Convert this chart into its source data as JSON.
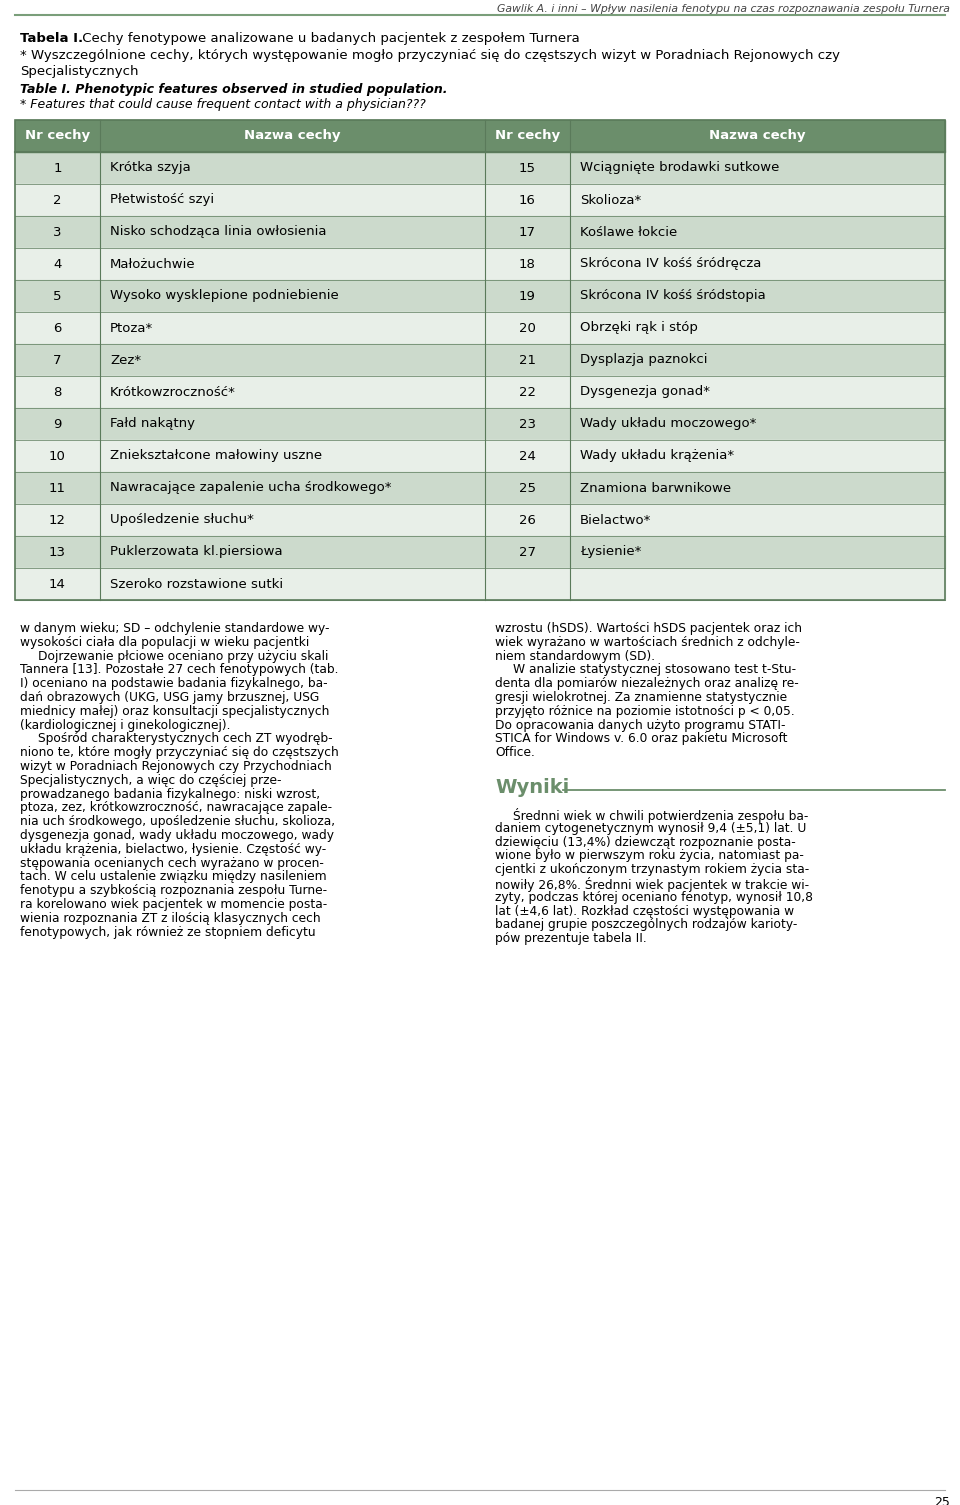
{
  "header_text": "Gawlik A. i inni – Wpływ nasilenia fenotypu na czas rozpoznawania zespołu Turnera",
  "title_bold": "Tabela I.",
  "title_rest": " Cechy fenotypowe analizowane u badanych pacjentek z zespołem Turnera",
  "subtitle1a": "* Wyszczególnione cechy, których występowanie mogło przyczyniać się do częstszych wizyt w Poradniach Rejonowych czy",
  "subtitle1b": "Specjalistycznych",
  "subtitle2": "Table I. Phenotypic features observed in studied population.",
  "subtitle3": "* Features that could cause frequent contact with a physician???",
  "col_headers": [
    "Nr cechy",
    "Nazwa cechy",
    "Nr cechy",
    "Nazwa cechy"
  ],
  "rows_left": [
    [
      "1",
      "Krótka szyja"
    ],
    [
      "2",
      "Płetwistość szyi"
    ],
    [
      "3",
      "Nisko schodząca linia owłosienia"
    ],
    [
      "4",
      "Małożuchwie"
    ],
    [
      "5",
      "Wysoko wysklepione podniebienie"
    ],
    [
      "6",
      "Ptoza*"
    ],
    [
      "7",
      "Zez*"
    ],
    [
      "8",
      "Krótkowzroczność*"
    ],
    [
      "9",
      "Fałd nakątny"
    ],
    [
      "10",
      "Zniekształcone małowiny uszne"
    ],
    [
      "11",
      "Nawracające zapalenie ucha środkowego*"
    ],
    [
      "12",
      "Upośledzenie słuchu*"
    ],
    [
      "13",
      "Puklerzowata kl.piersiowa"
    ],
    [
      "14",
      "Szeroko rozstawione sutki"
    ]
  ],
  "rows_right": [
    [
      "15",
      "Wciągnięte brodawki sutkowe"
    ],
    [
      "16",
      "Skolioza*"
    ],
    [
      "17",
      "Koślawe łokcie"
    ],
    [
      "18",
      "Skrócona IV kośś śródręcza"
    ],
    [
      "19",
      "Skrócona IV kośś śródstopia"
    ],
    [
      "20",
      "Obrzęki rąk i stóp"
    ],
    [
      "21",
      "Dysplazja paznokci"
    ],
    [
      "22",
      "Dysgenezja gonad*"
    ],
    [
      "23",
      "Wady układu moczowego*"
    ],
    [
      "24",
      "Wady układu krążenia*"
    ],
    [
      "25",
      "Znamiona barwnikowe"
    ],
    [
      "26",
      "Bielactwo*"
    ],
    [
      "27",
      "Łysienie*"
    ],
    [
      "",
      ""
    ]
  ],
  "row_colors_odd": "#ccdacc",
  "row_colors_even": "#e8efe8",
  "header_bg": "#6b8e6b",
  "header_text_color": "#ffffff",
  "table_border_color": "#5a7a5a",
  "left_body_lines": [
    "w danym wieku; SD – odchylenie standardowe wy-",
    "wysokości ciała dla populacji w wieku pacjentki",
    "    Dojrzewanie płciowe oceniano przy użyciu skali",
    "Tannera [13]. Pozostałe 27 cech fenotypowych (tab.",
    "I) oceniano na podstawie badania fizykalnego, ba-",
    "dań obrazowych (UKG, USG jamy brzusznej, USG",
    "miednicy małej) oraz konsultacji specjalistycznych",
    "(kardiologicznej i ginekologicznej).",
    "    Spośród charakterystycznych cech ZT wyodręb-",
    "niono te, które mogły przyczyniać się do częstszych",
    "wizyt w Poradniach Rejonowych czy Przychodniach",
    "Specjalistycznych, a więc do częściej prze-",
    "prowadzanego badania fizykalnego: niski wzrost,",
    "ptoza, zez, krótkowzroczność, nawracające zapale-",
    "nia uch środkowego, upośledzenie słuchu, skolioza,",
    "dysgenezja gonad, wady układu moczowego, wady",
    "układu krążenia, bielactwo, łysienie. Częstość wy-",
    "stępowania ocenianych cech wyrażano w procen-",
    "tach. W celu ustalenie związku między nasileniem",
    "fenotypu a szybkością rozpoznania zespołu Turne-",
    "ra korelowano wiek pacjentek w momencie posta-",
    "wienia rozpoznania ZT z ilością klasycznych cech",
    "fenotypowych, jak również ze stopniem deficytu"
  ],
  "right_body_lines": [
    "wzrostu (hSDS). Wartości hSDS pacjentek oraz ich",
    "wiek wyrażano w wartościach średnich z odchyle-",
    "niem standardowym (SD).",
    "    W analizie statystycznej stosowano test t-Stu-",
    "denta dla pomiarów niezależnych oraz analizę re-",
    "gresji wielokrotnej. Za znamienne statystycznie",
    "przyjęto różnice na poziomie istotności p < 0,05.",
    "Do opracowania danych użyto programu STATI-",
    "STICA for Windows v. 6.0 oraz pakietu Microsoft",
    "Office."
  ],
  "wyniki_title": "Wyniki",
  "wyniki_lines": [
    "    Średnni wiek w chwili potwierdzenia zespołu ba-",
    "daniem cytogenetycznym wynosił 9,4 (±5,1) lat. U",
    "dziewięciu (13,4%) dziewcząt rozpoznanie posta-",
    "wione było w pierwszym roku życia, natomiast pa-",
    "cjentki z ukończonym trzynastym rokiem życia sta-",
    "nowiły 26,8%. Średnni wiek pacjentek w trakcie wi-",
    "zyty, podczas której oceniano fenotyp, wynosił 10,8",
    "lat (±4,6 lat). Rozkład częstości występowania w",
    "badanej grupie poszczególnych rodzajów karioty-",
    "pów prezentuje tabela II."
  ],
  "page_number": "25",
  "separator_color": "#6b8e6b",
  "top_line_color": "#7a9e7a"
}
